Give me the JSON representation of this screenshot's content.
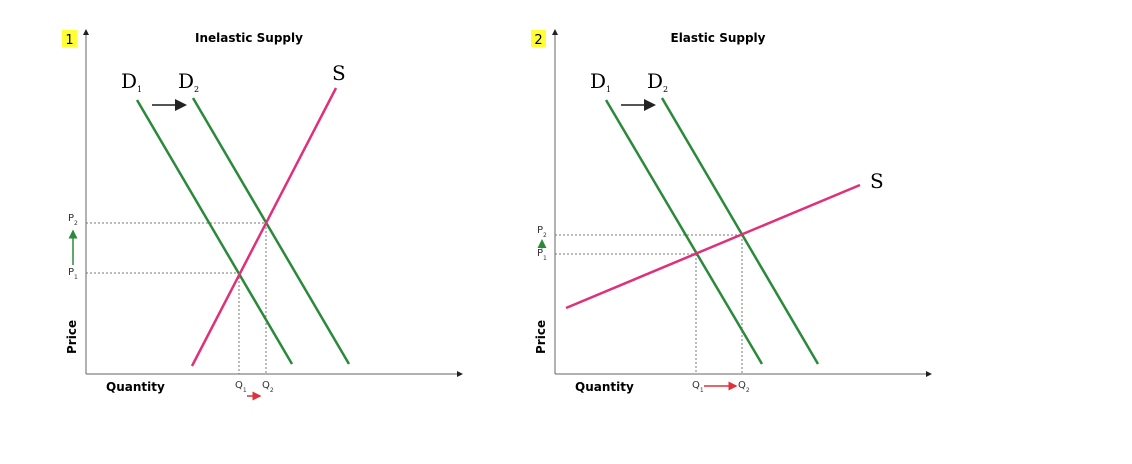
{
  "panels": [
    {
      "number": "1",
      "title": "Inelastic Supply",
      "y_axis_label": "Price",
      "x_axis_label": "Quantity",
      "demand_1": {
        "letter": "D",
        "sub": "1"
      },
      "demand_2": {
        "letter": "D",
        "sub": "2"
      },
      "supply": "S",
      "price_1": {
        "letter": "P",
        "sub": "1"
      },
      "price_2": {
        "letter": "P",
        "sub": "2"
      },
      "quantity_1": {
        "letter": "Q",
        "sub": "1"
      },
      "quantity_2": {
        "letter": "Q",
        "sub": "2"
      }
    },
    {
      "number": "2",
      "title": "Elastic Supply",
      "y_axis_label": "Price",
      "x_axis_label": "Quantity",
      "demand_1": {
        "letter": "D",
        "sub": "1"
      },
      "demand_2": {
        "letter": "D",
        "sub": "2"
      },
      "supply": "S",
      "price_1": {
        "letter": "P",
        "sub": "1"
      },
      "price_2": {
        "letter": "P",
        "sub": "2"
      },
      "quantity_1": {
        "letter": "Q",
        "sub": "1"
      },
      "quantity_2": {
        "letter": "Q",
        "sub": "2"
      }
    }
  ]
}
